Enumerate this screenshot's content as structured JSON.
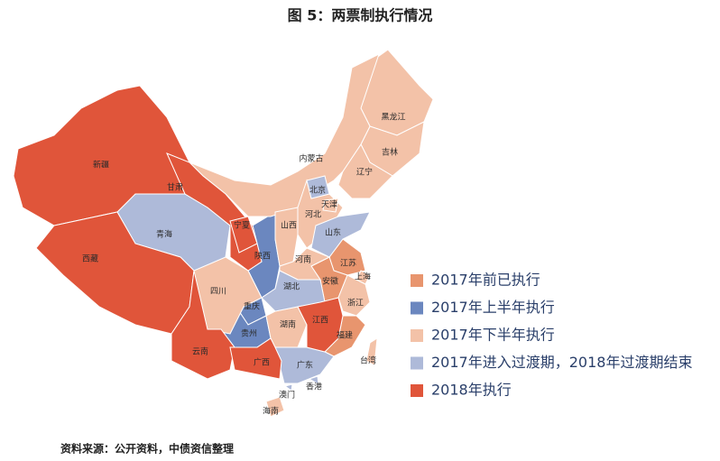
{
  "title": "图 5：两票制执行情况",
  "legend": [
    {
      "label": "2017年前已执行",
      "color": "#e8956e",
      "provinces": [
        "江苏",
        "安徽",
        "福建"
      ]
    },
    {
      "label": "2017年上半年执行",
      "color": "#6b87bf",
      "provinces": [
        "陕西",
        "重庆",
        "贵州"
      ]
    },
    {
      "label": "2017年下半年执行",
      "color": "#f3c2a8",
      "provinces": [
        "黑龙江",
        "吉林",
        "辽宁",
        "内蒙古",
        "河北",
        "天津",
        "山西",
        "河南",
        "四川",
        "湖南",
        "上海",
        "浙江",
        "海南",
        "台湾"
      ]
    },
    {
      "label": "2017年进入过渡期，2018年过渡期结束",
      "color": "#aebad9",
      "provinces": [
        "青海",
        "北京",
        "山东",
        "湖北",
        "广东",
        "香港",
        "澳门"
      ]
    },
    {
      "label": "2018年执行",
      "color": "#e0553a",
      "provinces": [
        "新疆",
        "西藏",
        "甘肃",
        "宁夏",
        "云南",
        "广西",
        "江西"
      ]
    }
  ],
  "source": "资料来源：公开资料，中债资信整理"
}
